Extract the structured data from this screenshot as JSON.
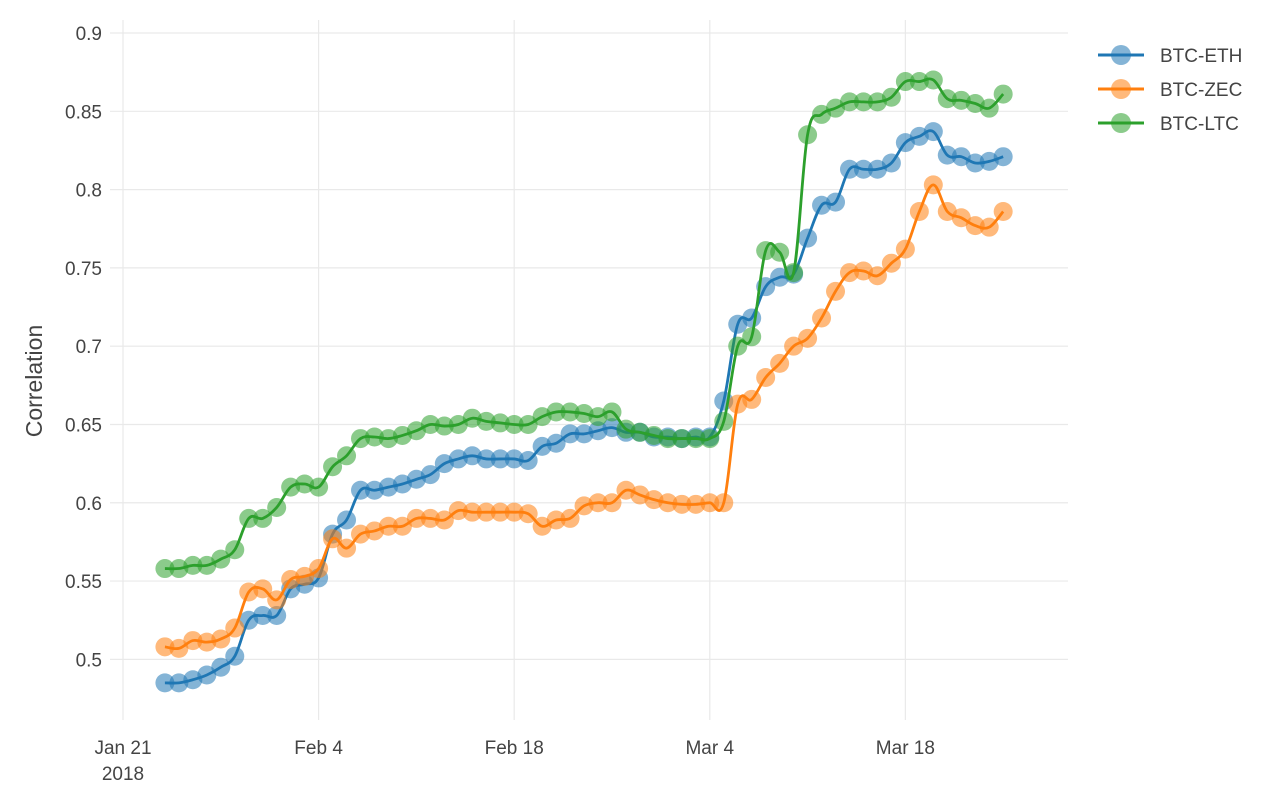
{
  "chart_data": {
    "type": "line",
    "title": "",
    "xlabel": "",
    "ylabel": "Correlation",
    "ylim": [
      0.46,
      0.9
    ],
    "xlim": [
      "2018-01-21",
      "2018-03-31"
    ],
    "x_ticks": [
      {
        "date": "2018-01-21",
        "label": "Jan 21",
        "sublabel": "2018"
      },
      {
        "date": "2018-02-04",
        "label": "Feb 4",
        "sublabel": ""
      },
      {
        "date": "2018-02-18",
        "label": "Feb 18",
        "sublabel": ""
      },
      {
        "date": "2018-03-04",
        "label": "Mar 4",
        "sublabel": ""
      },
      {
        "date": "2018-03-18",
        "label": "Mar 18",
        "sublabel": ""
      }
    ],
    "y_ticks": [
      {
        "value": 0.5,
        "label": "0.5"
      },
      {
        "value": 0.55,
        "label": "0.55"
      },
      {
        "value": 0.6,
        "label": "0.6"
      },
      {
        "value": 0.65,
        "label": "0.65"
      },
      {
        "value": 0.7,
        "label": "0.7"
      },
      {
        "value": 0.75,
        "label": "0.75"
      },
      {
        "value": 0.8,
        "label": "0.8"
      },
      {
        "value": 0.85,
        "label": "0.85"
      },
      {
        "value": 0.9,
        "label": "0.9"
      }
    ],
    "grid": true,
    "legend_position": "top-right",
    "x": [
      "2018-01-24",
      "2018-01-25",
      "2018-01-26",
      "2018-01-27",
      "2018-01-28",
      "2018-01-29",
      "2018-01-30",
      "2018-01-31",
      "2018-02-01",
      "2018-02-02",
      "2018-02-03",
      "2018-02-04",
      "2018-02-05",
      "2018-02-06",
      "2018-02-07",
      "2018-02-08",
      "2018-02-09",
      "2018-02-10",
      "2018-02-11",
      "2018-02-12",
      "2018-02-13",
      "2018-02-14",
      "2018-02-15",
      "2018-02-16",
      "2018-02-17",
      "2018-02-18",
      "2018-02-19",
      "2018-02-20",
      "2018-02-21",
      "2018-02-22",
      "2018-02-23",
      "2018-02-24",
      "2018-02-25",
      "2018-02-26",
      "2018-02-27",
      "2018-02-28",
      "2018-03-01",
      "2018-03-02",
      "2018-03-03",
      "2018-03-04",
      "2018-03-05",
      "2018-03-06",
      "2018-03-07",
      "2018-03-08",
      "2018-03-09",
      "2018-03-10",
      "2018-03-11",
      "2018-03-12",
      "2018-03-13",
      "2018-03-14",
      "2018-03-15",
      "2018-03-16",
      "2018-03-17",
      "2018-03-18",
      "2018-03-19",
      "2018-03-20",
      "2018-03-21",
      "2018-03-22",
      "2018-03-23",
      "2018-03-24",
      "2018-03-25"
    ],
    "series": [
      {
        "name": "BTC-ETH",
        "color": "#1f77b4",
        "values": [
          0.485,
          0.485,
          0.487,
          0.49,
          0.495,
          0.502,
          0.525,
          0.528,
          0.528,
          0.545,
          0.548,
          0.552,
          0.58,
          0.589,
          0.608,
          0.608,
          0.61,
          0.612,
          0.615,
          0.618,
          0.625,
          0.628,
          0.63,
          0.628,
          0.628,
          0.628,
          0.627,
          0.636,
          0.638,
          0.644,
          0.644,
          0.646,
          0.648,
          0.645,
          0.645,
          0.642,
          0.642,
          0.641,
          0.642,
          0.642,
          0.665,
          0.714,
          0.718,
          0.738,
          0.744,
          0.746,
          0.769,
          0.79,
          0.792,
          0.813,
          0.813,
          0.813,
          0.817,
          0.83,
          0.834,
          0.837,
          0.822,
          0.821,
          0.817,
          0.818,
          0.821
        ]
      },
      {
        "name": "BTC-ZEC",
        "color": "#ff7f0e",
        "values": [
          0.508,
          0.507,
          0.512,
          0.511,
          0.513,
          0.52,
          0.543,
          0.545,
          0.538,
          0.551,
          0.553,
          0.558,
          0.577,
          0.571,
          0.58,
          0.582,
          0.585,
          0.585,
          0.59,
          0.59,
          0.589,
          0.595,
          0.594,
          0.594,
          0.594,
          0.594,
          0.593,
          0.585,
          0.589,
          0.59,
          0.598,
          0.6,
          0.6,
          0.608,
          0.605,
          0.602,
          0.6,
          0.599,
          0.599,
          0.6,
          0.6,
          0.663,
          0.666,
          0.68,
          0.689,
          0.7,
          0.705,
          0.718,
          0.735,
          0.747,
          0.748,
          0.745,
          0.753,
          0.762,
          0.786,
          0.803,
          0.786,
          0.782,
          0.777,
          0.776,
          0.786
        ]
      },
      {
        "name": "BTC-LTC",
        "color": "#2ca02c",
        "values": [
          0.558,
          0.558,
          0.56,
          0.56,
          0.564,
          0.57,
          0.59,
          0.59,
          0.597,
          0.61,
          0.612,
          0.61,
          0.623,
          0.63,
          0.641,
          0.642,
          0.641,
          0.643,
          0.646,
          0.65,
          0.649,
          0.65,
          0.654,
          0.652,
          0.651,
          0.65,
          0.65,
          0.655,
          0.658,
          0.658,
          0.657,
          0.655,
          0.658,
          0.647,
          0.645,
          0.643,
          0.641,
          0.641,
          0.641,
          0.641,
          0.652,
          0.7,
          0.706,
          0.761,
          0.76,
          0.747,
          0.835,
          0.848,
          0.852,
          0.856,
          0.856,
          0.856,
          0.859,
          0.869,
          0.869,
          0.87,
          0.858,
          0.857,
          0.855,
          0.852,
          0.861
        ]
      }
    ]
  }
}
